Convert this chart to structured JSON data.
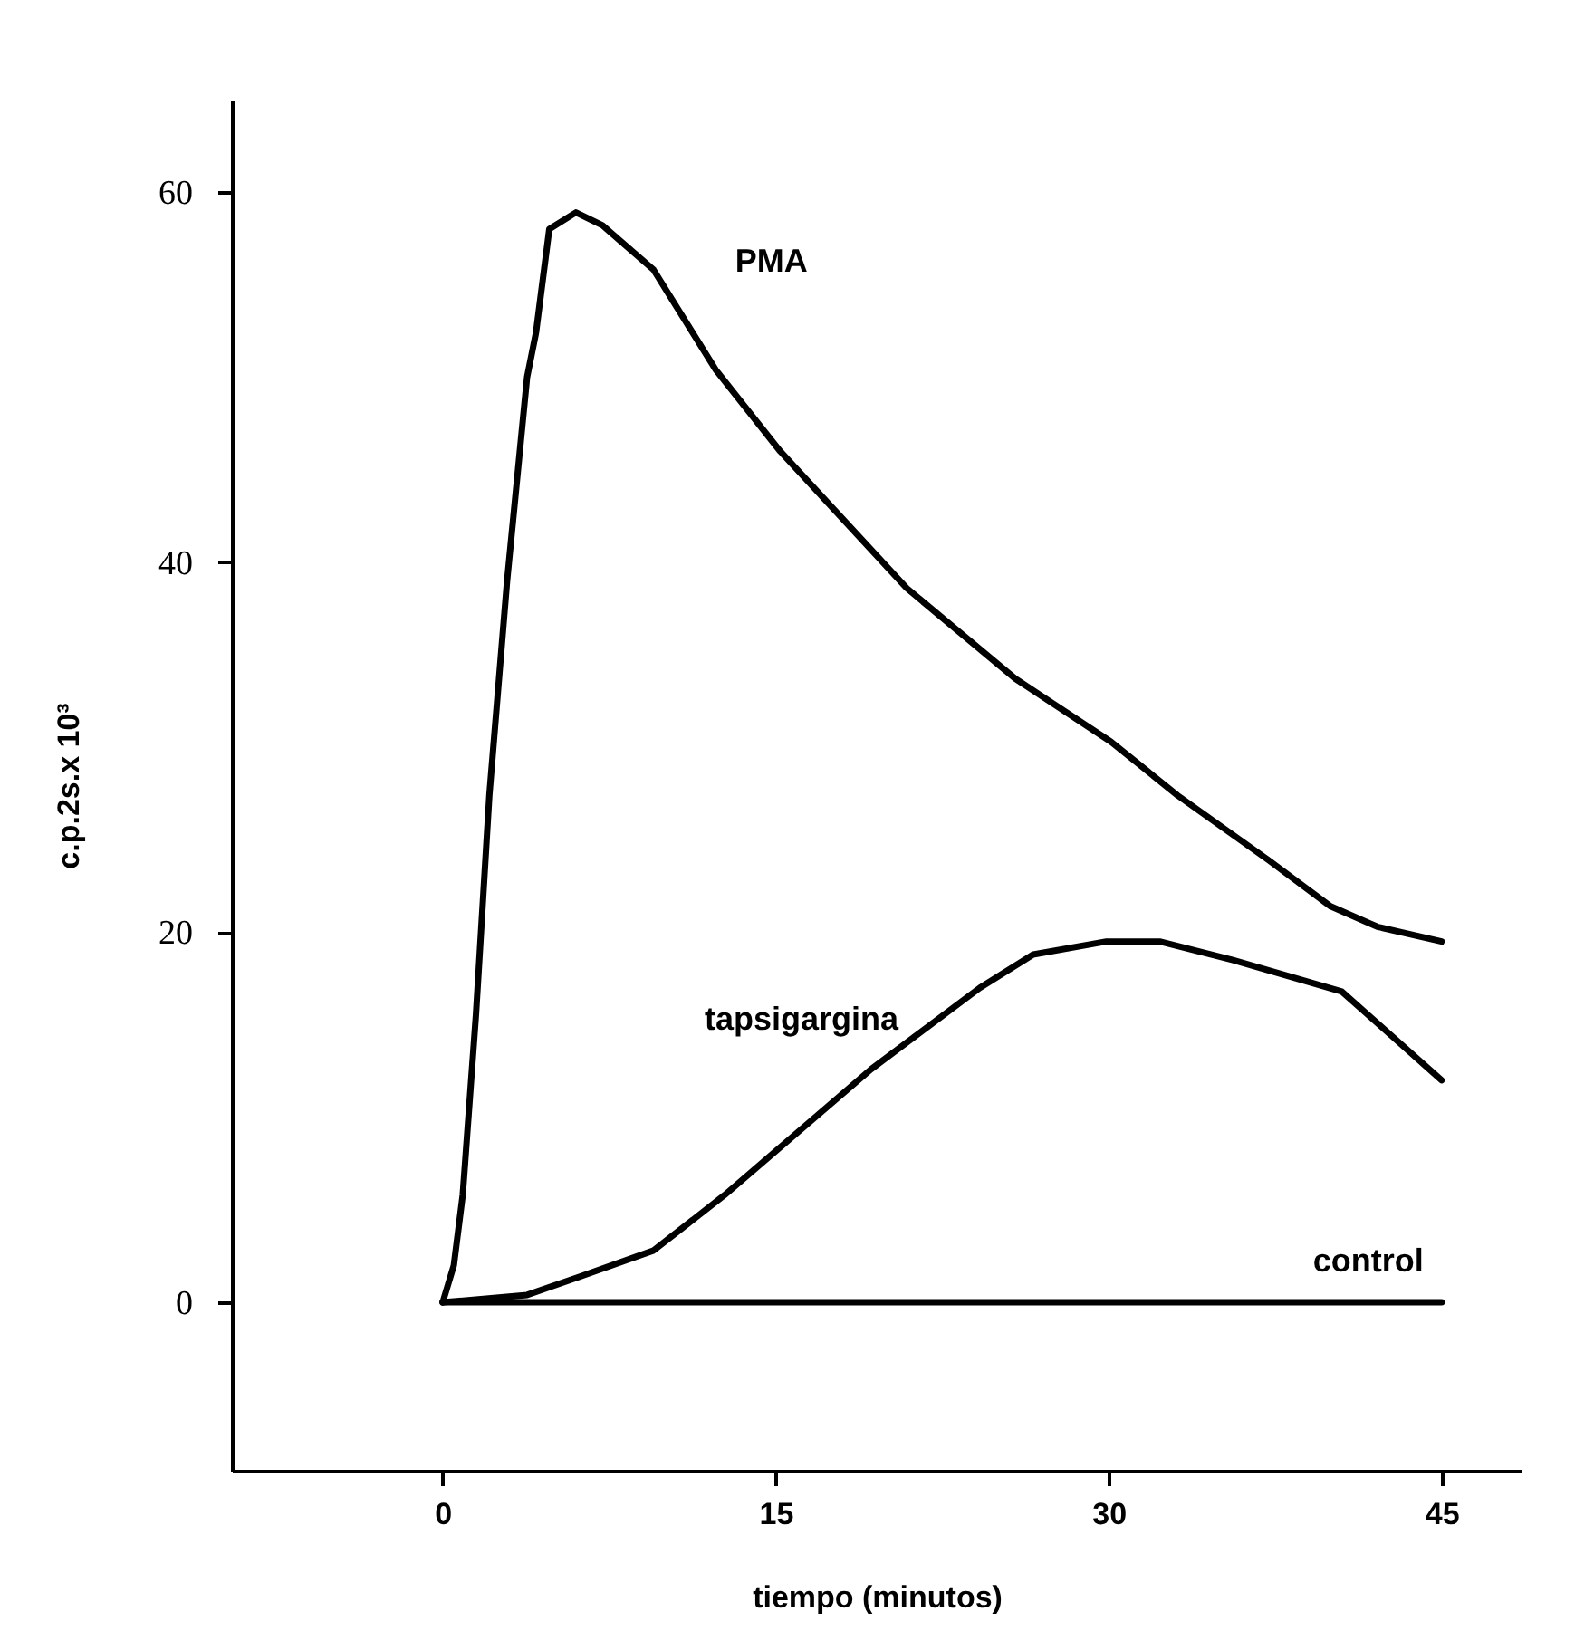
{
  "chart_data": {
    "type": "line",
    "xlabel": "tiempo (minutos)",
    "ylabel": "c.p.2s.x 10³",
    "xlim": [
      -9.5,
      48.6
    ],
    "ylim": [
      -9.1,
      65
    ],
    "xticks": [
      0,
      15,
      30,
      45
    ],
    "yticks": [
      0,
      20,
      40,
      60
    ],
    "grid": false,
    "marker": "none",
    "line_style": "solid",
    "series": [
      {
        "name": "PMA",
        "color": "#000000",
        "x": [
          0,
          0.5,
          0.9,
          1.5,
          2.1,
          2.9,
          3.8,
          4.2,
          4.8,
          6,
          7.2,
          9.5,
          12.3,
          15.2,
          20.9,
          25.8,
          30.1,
          33.1,
          37.2,
          40,
          42.1,
          45
        ],
        "values": [
          0,
          2,
          5.8,
          15.6,
          27.4,
          39,
          50,
          52.4,
          58,
          58.9,
          58.2,
          55.8,
          50.4,
          46,
          38.6,
          33.7,
          30.3,
          27.4,
          23.9,
          21.4,
          20.3,
          19.5
        ]
      },
      {
        "name": "tapsigargina",
        "color": "#000000",
        "x": [
          0,
          3.8,
          6.2,
          9.5,
          12.7,
          16,
          19.3,
          24.2,
          26.6,
          29.9,
          32.3,
          35.6,
          40.5,
          45
        ],
        "values": [
          0,
          0.4,
          1.4,
          2.8,
          5.8,
          9.2,
          12.6,
          17,
          18.8,
          19.5,
          19.5,
          18.5,
          16.8,
          12
        ]
      },
      {
        "name": "control",
        "color": "#000000",
        "x": [
          0,
          45
        ],
        "values": [
          0,
          0
        ]
      }
    ]
  }
}
